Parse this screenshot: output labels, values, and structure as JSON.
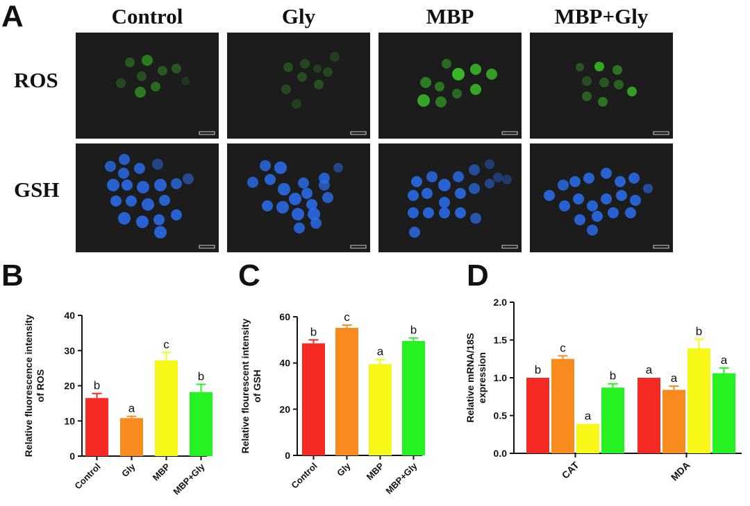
{
  "figure": {
    "panel_labels": [
      "A",
      "B",
      "C",
      "D"
    ],
    "column_headers": [
      "Control",
      "Gly",
      "MBP",
      "MBP+Gly"
    ],
    "row_headers": [
      "ROS",
      "GSH"
    ],
    "colors": {
      "Control": "#f52a23",
      "Gly": "#f88a1e",
      "MBP": "#f8f818",
      "MBP+Gly": "#26f222",
      "ros_stain": "#3cc828",
      "gsh_stain": "#2a6ff0",
      "micro_bg": "#1c1c1c"
    }
  },
  "chart_data": [
    {
      "type": "bar",
      "panel": "B",
      "categories": [
        "Control",
        "Gly",
        "MBP",
        "MBP+Gly"
      ],
      "values": [
        16.5,
        10.8,
        27.2,
        18.2
      ],
      "errors": [
        1.3,
        0.5,
        2.3,
        2.2
      ],
      "significance": [
        "b",
        "a",
        "c",
        "b"
      ],
      "ylabel": "Relative fluorescence intensity of ROS",
      "ylim": [
        0,
        40
      ],
      "yticks": [
        0,
        10,
        20,
        30,
        40
      ]
    },
    {
      "type": "bar",
      "panel": "C",
      "categories": [
        "Control",
        "Gly",
        "MBP",
        "MBP+Gly"
      ],
      "values": [
        48.5,
        55.2,
        39.5,
        49.5
      ],
      "errors": [
        1.5,
        1.2,
        2.0,
        1.3
      ],
      "significance": [
        "b",
        "c",
        "a",
        "b"
      ],
      "ylabel": "Relative flourescent intensity of GSH",
      "ylim": [
        0,
        60
      ],
      "yticks": [
        0,
        20,
        40,
        60
      ]
    },
    {
      "type": "bar",
      "panel": "D",
      "categories": [
        "CAT",
        "MDA"
      ],
      "series": [
        {
          "values": [
            1.0,
            1.0
          ],
          "errors": [
            0.0,
            0.0
          ],
          "significance": [
            "b",
            "a"
          ]
        },
        {
          "values": [
            1.25,
            0.84
          ],
          "errors": [
            0.04,
            0.05
          ],
          "significance": [
            "c",
            "a"
          ]
        },
        {
          "values": [
            0.39,
            1.39
          ],
          "errors": [
            0.0,
            0.12
          ],
          "significance": [
            "a",
            "b"
          ]
        },
        {
          "values": [
            0.87,
            1.06
          ],
          "errors": [
            0.05,
            0.07
          ],
          "significance": [
            "b",
            "a"
          ]
        }
      ],
      "ylabel": "Relative mRNA/18S expression",
      "ylim": [
        0,
        2.0
      ],
      "yticks": [
        "0.0",
        "0.5",
        "1.0",
        "1.5",
        "2.0"
      ]
    }
  ]
}
